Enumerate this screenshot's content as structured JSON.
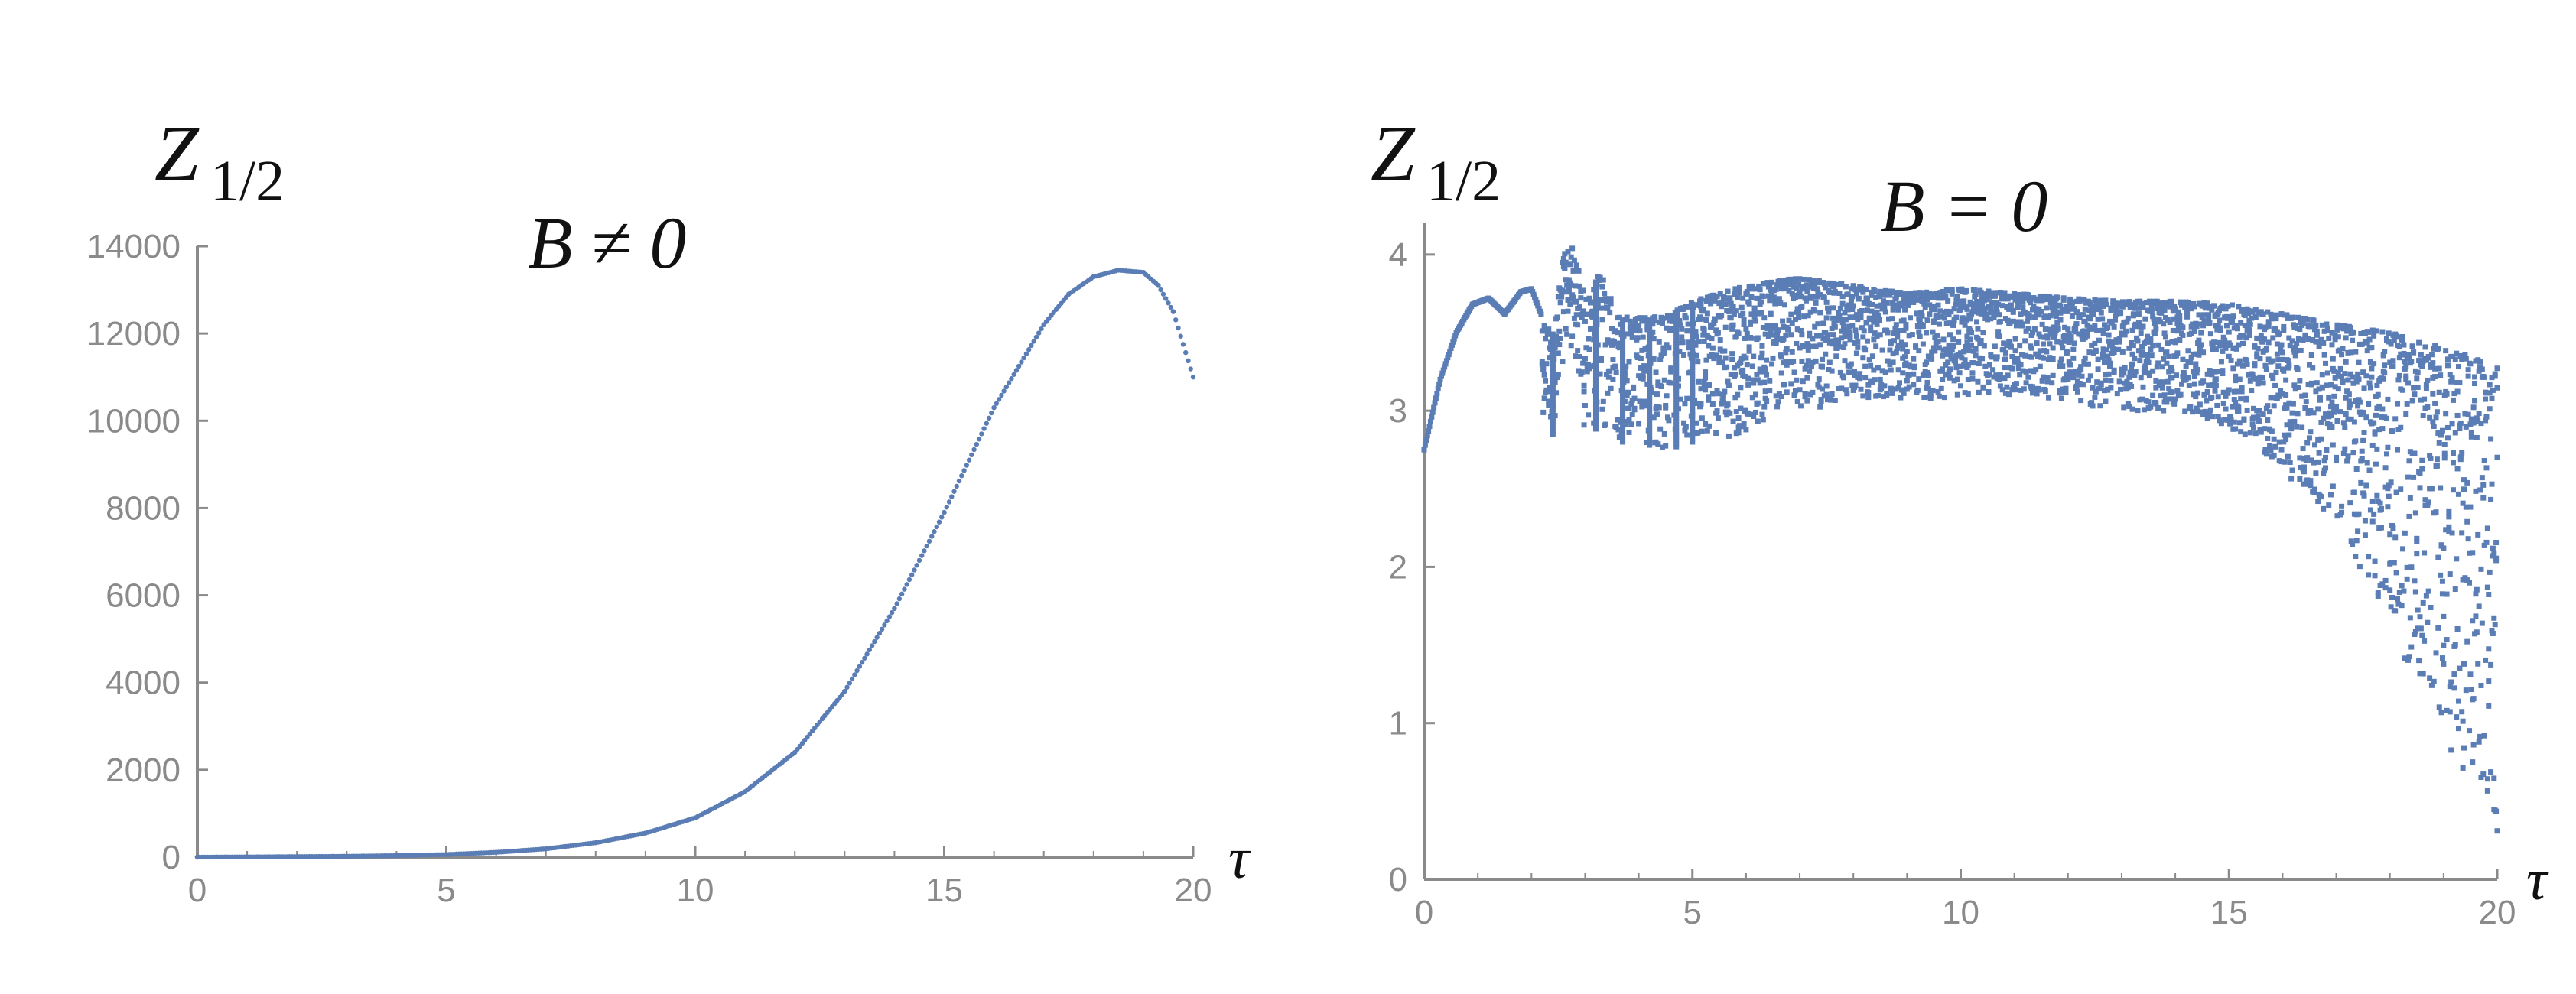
{
  "colors": {
    "series": "#5b7db5",
    "axis": "#8a8a8a",
    "tick_text": "#8a8a8a",
    "math_text": "#111111"
  },
  "chart_data": [
    {
      "type": "scatter",
      "title": "B ≠ 0",
      "ylabel_main": "Z",
      "ylabel_sub": "1/2",
      "xlabel": "τ",
      "xlim": [
        0,
        20
      ],
      "ylim": [
        0,
        14000
      ],
      "xticks": [
        0,
        5,
        10,
        15,
        20
      ],
      "yticks": [
        0,
        2000,
        4000,
        6000,
        8000,
        10000,
        12000,
        14000
      ],
      "grid": false,
      "legend": "none",
      "series": [
        {
          "x": [
            0,
            1,
            2,
            3,
            4,
            5,
            6,
            7,
            8,
            9,
            10,
            11,
            12,
            13,
            14,
            15,
            16,
            17,
            17.5,
            18,
            18.5,
            19,
            19.3,
            19.6,
            20
          ],
          "y": [
            0,
            5,
            12,
            20,
            35,
            60,
            110,
            190,
            330,
            550,
            900,
            1500,
            2400,
            3800,
            5700,
            7900,
            10300,
            12200,
            12900,
            13300,
            13450,
            13400,
            13100,
            12500,
            11000
          ]
        }
      ]
    },
    {
      "type": "scatter",
      "title": "B = 0",
      "ylabel_main": "Z",
      "ylabel_sub": "1/2",
      "xlabel": "τ",
      "xlim": [
        0,
        20
      ],
      "ylim": [
        0,
        4.2
      ],
      "xticks": [
        0,
        5,
        10,
        15,
        20
      ],
      "yticks": [
        0,
        1,
        2,
        3,
        4
      ],
      "grid": false,
      "legend": "none",
      "series": [
        {
          "description_points": "dense scattered band",
          "x": [
            0,
            0.3,
            0.6,
            0.9,
            1.2,
            1.5,
            1.8,
            2.0,
            2.2,
            2.4,
            2.6,
            2.8,
            3.0,
            3.3,
            3.6,
            4.0,
            4.5,
            5.0,
            6.0,
            7.0,
            8.0,
            9.0,
            10.0,
            11.0,
            12.0,
            13.0,
            14.0,
            15.0,
            16.0,
            17.0,
            18.0,
            19.0,
            19.5,
            19.8,
            20.0
          ],
          "y_upper": [
            2.75,
            3.2,
            3.5,
            3.68,
            3.72,
            3.62,
            3.76,
            3.78,
            3.6,
            3.5,
            4.0,
            4.05,
            3.7,
            3.9,
            3.6,
            3.6,
            3.6,
            3.7,
            3.8,
            3.85,
            3.8,
            3.75,
            3.78,
            3.75,
            3.72,
            3.7,
            3.7,
            3.68,
            3.62,
            3.55,
            3.5,
            3.4,
            3.35,
            3.32,
            3.3
          ],
          "y_lower": [
            2.75,
            3.2,
            3.5,
            3.68,
            3.72,
            3.5,
            3.7,
            3.7,
            3.0,
            2.85,
            3.3,
            3.4,
            2.85,
            2.9,
            2.8,
            2.8,
            2.75,
            2.8,
            2.85,
            3.0,
            3.05,
            3.05,
            3.1,
            3.1,
            3.05,
            3.0,
            3.0,
            2.9,
            2.6,
            2.3,
            1.6,
            0.9,
            0.6,
            0.45,
            0.3
          ]
        }
      ]
    }
  ]
}
